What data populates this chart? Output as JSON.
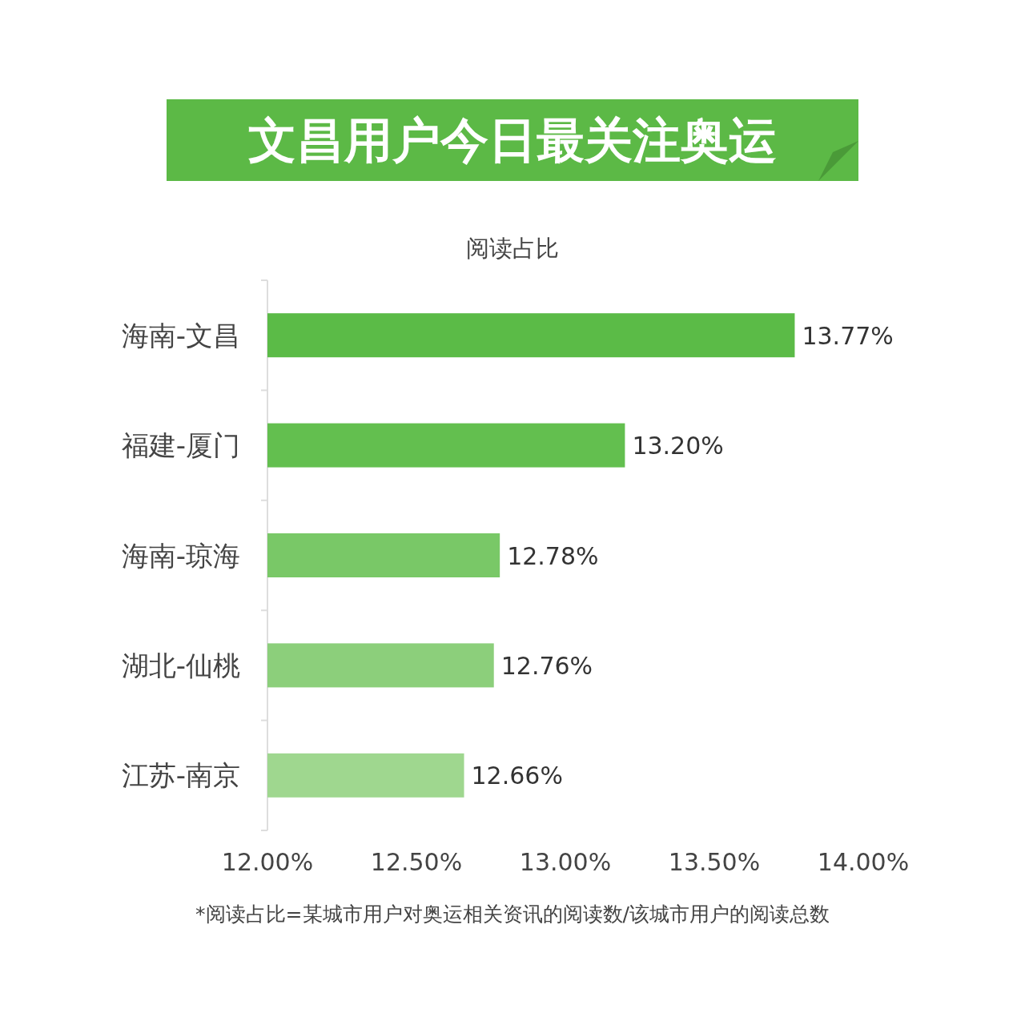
{
  "chart_data": {
    "type": "bar",
    "orientation": "horizontal",
    "title": "文昌用户今日最关注奥运",
    "subtitle": "阅读占比",
    "categories": [
      "海南-文昌",
      "福建-厦门",
      "海南-琼海",
      "湖北-仙桃",
      "江苏-南京"
    ],
    "values": [
      13.77,
      13.2,
      12.78,
      12.76,
      12.66
    ],
    "value_labels": [
      "13.77%",
      "13.20%",
      "12.78%",
      "12.76%",
      "12.66%"
    ],
    "colors": [
      "#5bbb47",
      "#63bf4f",
      "#79c867",
      "#8ccf7b",
      "#9fd78f"
    ],
    "xlim": [
      12,
      14
    ],
    "xticks": [
      {
        "value": 12,
        "label": "12.00%"
      },
      {
        "value": 12.5,
        "label": "12.50%"
      },
      {
        "value": 13,
        "label": "13.00%"
      },
      {
        "value": 13.5,
        "label": "13.50%"
      },
      {
        "value": 14,
        "label": "14.00%"
      }
    ],
    "annotations": [
      "*阅读占比=某城市用户对奥运相关资讯的阅读数/该城市用户的阅读总数"
    ]
  }
}
